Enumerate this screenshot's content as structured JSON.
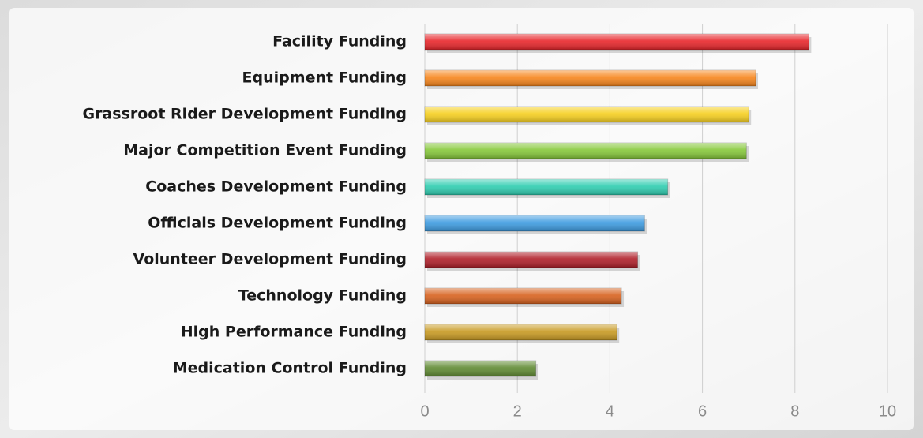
{
  "chart_data": {
    "type": "bar",
    "orientation": "horizontal",
    "categories": [
      "Facility Funding",
      "Equipment Funding",
      "Grassroot Rider Development Funding",
      "Major Competition Event Funding",
      "Coaches Development Funding",
      "Officials Development Funding",
      "Volunteer Development Funding",
      "Technology Funding",
      "High Performance Funding",
      "Medication Control Funding"
    ],
    "values": [
      8.3,
      7.15,
      7.0,
      6.95,
      5.25,
      4.75,
      4.6,
      4.25,
      4.15,
      2.4
    ],
    "colors": [
      "#e8262b",
      "#f7861c",
      "#f6cf1f",
      "#86c83a",
      "#2fcdb0",
      "#3d9be0",
      "#b0202a",
      "#d8621f",
      "#c89a22",
      "#5f8a32"
    ],
    "xlim": [
      0,
      10
    ],
    "xticks": [
      0,
      2,
      4,
      6,
      8,
      10
    ],
    "grid": true
  }
}
